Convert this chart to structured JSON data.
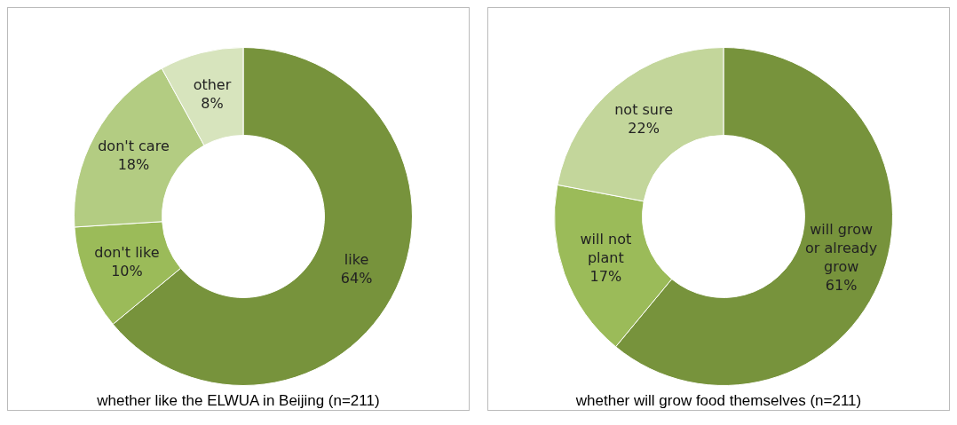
{
  "chart_data": [
    {
      "type": "donut",
      "title": "whether like the ELWUA in Beijing (n=211)",
      "categories": [
        "like",
        "don't like",
        "don't care",
        "other"
      ],
      "values": [
        64,
        10,
        18,
        8
      ],
      "value_labels": [
        "64%",
        "10%",
        "18%",
        "8%"
      ],
      "colors": [
        "#77933c",
        "#9bbb59",
        "#b3cc82",
        "#d7e4bd"
      ],
      "legend": false
    },
    {
      "type": "donut",
      "title": "whether will grow food themselves (n=211)",
      "categories": [
        "will grow or already grow",
        "will not plant",
        "not sure"
      ],
      "values": [
        61,
        17,
        22
      ],
      "value_labels": [
        "61%",
        "17%",
        "22%"
      ],
      "colors": [
        "#77933c",
        "#9bbb59",
        "#c3d69b"
      ],
      "legend": false
    }
  ]
}
